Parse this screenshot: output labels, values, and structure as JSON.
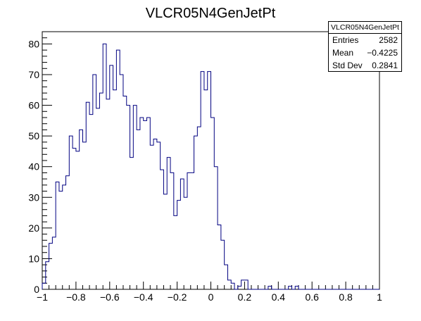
{
  "chart_data": {
    "type": "histogram",
    "title": "VLCR05N4GenJetPt",
    "xlabel": "",
    "ylabel": "",
    "xlim": [
      -1,
      1
    ],
    "ylim": [
      0,
      84
    ],
    "bin_width": 0.02,
    "x_ticks": [
      "−1",
      "−0.8",
      "−0.6",
      "−0.4",
      "−0.2",
      "0",
      "0.2",
      "0.4",
      "0.6",
      "0.8",
      "1"
    ],
    "y_ticks": [
      "0",
      "10",
      "20",
      "30",
      "40",
      "50",
      "60",
      "70",
      "80"
    ],
    "line_color": "#000080",
    "values": [
      2,
      9,
      15,
      17,
      35,
      32,
      34,
      37,
      50,
      46,
      45,
      52,
      48,
      61,
      57,
      70,
      59,
      64,
      80,
      62,
      73,
      65,
      78,
      70,
      63,
      60,
      43,
      60,
      52,
      56,
      55,
      56,
      47,
      49,
      48,
      39,
      31,
      43,
      38,
      24,
      29,
      36,
      30,
      38,
      38,
      50,
      53,
      71,
      65,
      71,
      56,
      40,
      21,
      16,
      8,
      3,
      2,
      0,
      1,
      3,
      3,
      0,
      0,
      0,
      0,
      0,
      0,
      1,
      0,
      0,
      0,
      0,
      0,
      1,
      0,
      1,
      0,
      0,
      0,
      0,
      0,
      0,
      0,
      0,
      0,
      0,
      0,
      0,
      0,
      0,
      0,
      0,
      0,
      0,
      0,
      0,
      0,
      0,
      0,
      0
    ]
  },
  "stats": {
    "name": "VLCR05N4GenJetPt",
    "rows": [
      {
        "label": "Entries",
        "value": "2582"
      },
      {
        "label": "Mean",
        "value": "−0.4225"
      },
      {
        "label": "Std Dev",
        "value": "0.2841"
      }
    ]
  }
}
